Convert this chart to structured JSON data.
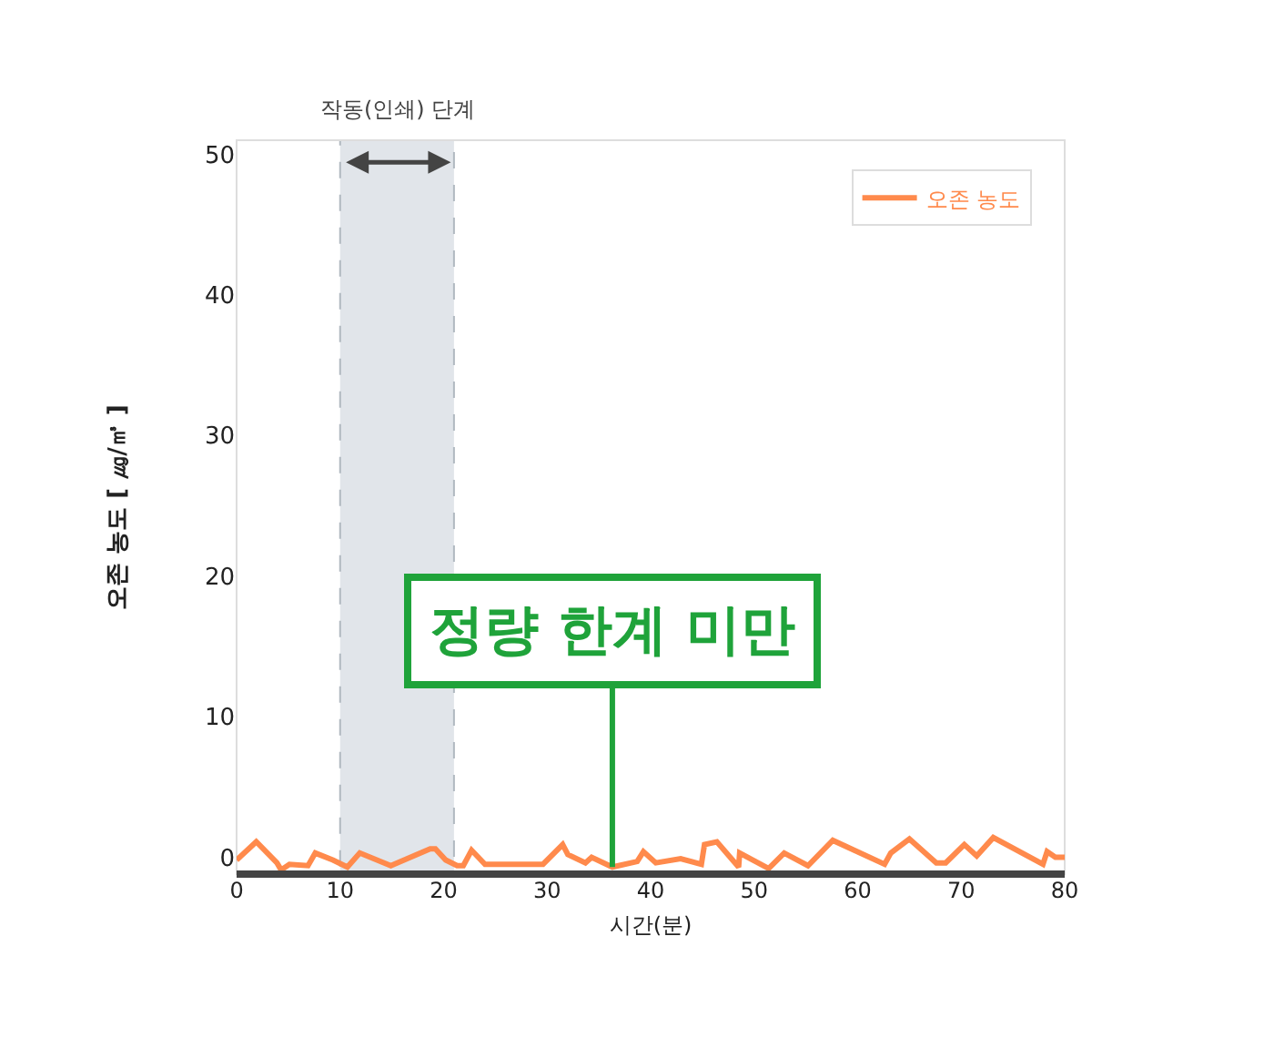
{
  "chart_data": {
    "type": "line",
    "xlabel": "시간(분)",
    "ylabel": "오존 농도 [ ㎍/㎥ ]",
    "x": [
      0,
      1.9,
      3.9,
      4.3,
      5.1,
      6.9,
      7.6,
      9.3,
      10.7,
      11.9,
      14.9,
      18.7,
      19.2,
      20.2,
      21.3,
      21.9,
      22.7,
      24,
      29.6,
      31.5,
      32,
      33.7,
      34.3,
      36.3,
      38.7,
      39.3,
      40.5,
      42.9,
      44.9,
      45.2,
      46.4,
      48.5,
      48.6,
      51.4,
      52.9,
      55.2,
      57.6,
      62.6,
      63.2,
      65,
      67.6,
      68.5,
      70.3,
      71.5,
      73.1,
      77.9,
      78.3,
      79.1,
      80
    ],
    "series": [
      {
        "name": "오존 농도",
        "color": "#ff8a4c",
        "values": [
          -0.2,
          1.1,
          -0.4,
          -0.9,
          -0.5,
          -0.6,
          0.3,
          -0.2,
          -0.7,
          0.3,
          -0.6,
          0.6,
          0.6,
          -0.2,
          -0.6,
          -0.6,
          0.5,
          -0.5,
          -0.5,
          0.9,
          0.2,
          -0.4,
          0.0,
          -0.7,
          -0.3,
          0.4,
          -0.4,
          -0.1,
          -0.5,
          0.9,
          1.1,
          -0.7,
          0.3,
          -0.8,
          0.3,
          -0.6,
          1.2,
          -0.5,
          0.3,
          1.3,
          -0.4,
          -0.4,
          0.9,
          0.1,
          1.4,
          -0.5,
          0.4,
          0.0,
          0.0
        ]
      }
    ],
    "xlim": [
      0,
      80
    ],
    "xticks": [
      0,
      10,
      20,
      30,
      40,
      50,
      60,
      70,
      80
    ],
    "ylim": [
      -1.2,
      51
    ],
    "yticks": [
      0,
      10,
      20,
      30,
      40,
      50
    ],
    "bands": [
      {
        "axis": "x",
        "from": 10,
        "to": 21,
        "label": "작동(인쇄) 단계",
        "color": "#e1e5ea"
      }
    ],
    "annotations": [
      {
        "text": "정량 한계 미만",
        "x": 36.3,
        "y": -0.7
      }
    ],
    "grid": false,
    "legend": "top right",
    "marker": "none",
    "line_style": "solid"
  }
}
